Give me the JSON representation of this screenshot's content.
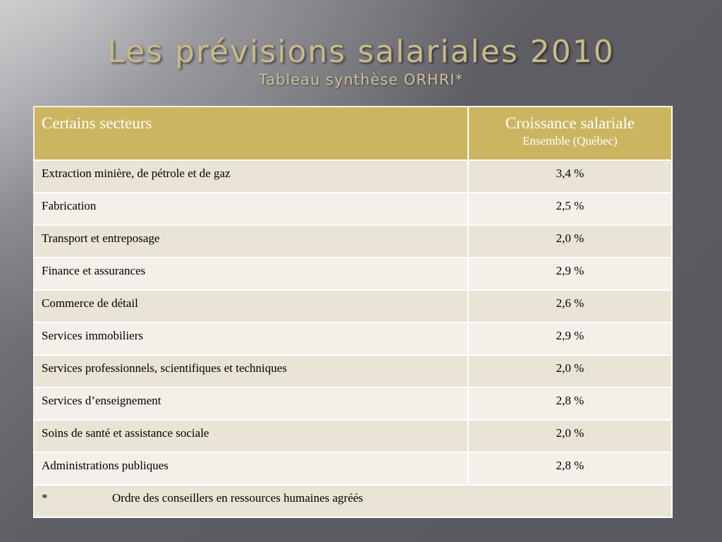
{
  "slide": {
    "title": "Les prévisions salariales 2010",
    "subtitle": "Tableau synthèse ORHRI*"
  },
  "table": {
    "headers": {
      "sector": "Certains secteurs",
      "growth_main": "Croissance salariale",
      "growth_sub": "Ensemble (Québec)"
    },
    "rows": [
      {
        "sector": "Extraction minière, de pétrole et de gaz",
        "growth": "3,4 %"
      },
      {
        "sector": "Fabrication",
        "growth": "2,5 %"
      },
      {
        "sector": "Transport et entreposage",
        "growth": "2,0 %"
      },
      {
        "sector": "Finance et assurances",
        "growth": "2,9 %"
      },
      {
        "sector": "Commerce de détail",
        "growth": "2,6 %"
      },
      {
        "sector": "Services immobiliers",
        "growth": "2,9 %"
      },
      {
        "sector": "Services professionnels, scientifiques et techniques",
        "growth": "2,0 %"
      },
      {
        "sector": "Services d’enseignement",
        "growth": "2,8 %"
      },
      {
        "sector": "Soins de santé et assistance sociale",
        "growth": "2,0 %"
      },
      {
        "sector": "Administrations publiques",
        "growth": "2,8 %"
      }
    ],
    "footnote": {
      "marker": "*",
      "text": "Ordre des conseillers en ressources humaines agréés"
    }
  },
  "colors": {
    "header_bg": "#cbb560",
    "row_dark": "#e9e4d5",
    "row_light": "#f3f0ea",
    "title": "#c9b98a"
  }
}
